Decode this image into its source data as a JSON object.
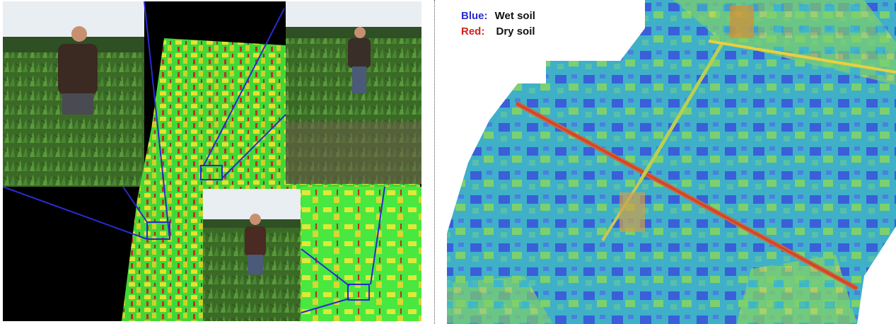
{
  "legend": {
    "wet": {
      "key": "Blue:",
      "label": "Wet soil",
      "color": "#2b2bd0"
    },
    "dry": {
      "key": "Red:",
      "label": "Dry soil",
      "color": "#d42020"
    }
  },
  "colors": {
    "corn_green": "#3f6f2a",
    "sky": "#e8eef2",
    "ndvi_green": "#37e037",
    "ndvi_yellow": "#e8e030",
    "ndvi_red": "#c8301a",
    "thermal_blue": "#3a5fd8",
    "thermal_cyan": "#3fb8c8",
    "thermal_green": "#7cd070",
    "zoom_line": "#2a2ad0"
  }
}
